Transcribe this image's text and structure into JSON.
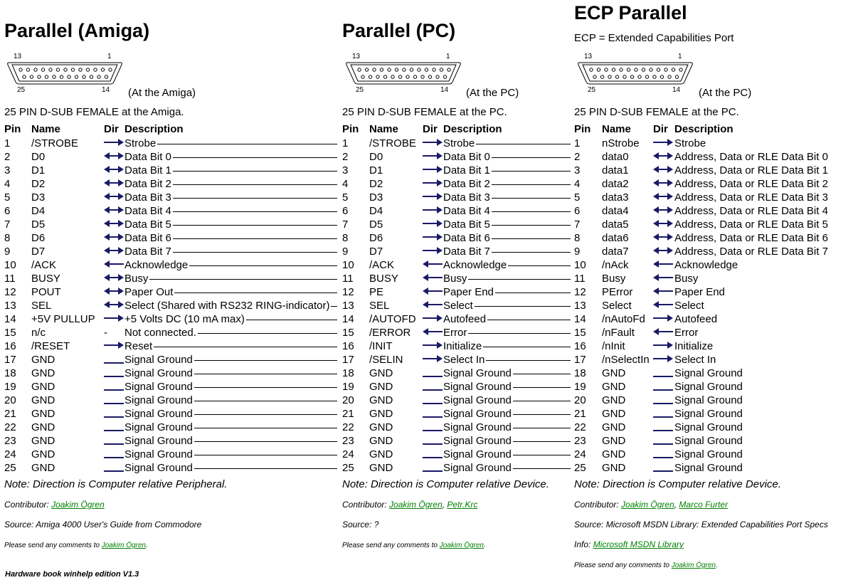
{
  "sections": [
    {
      "title": "Parallel (Amiga)",
      "subtitle": "",
      "connector": {
        "pin_first": "13",
        "pin_last": "1",
        "pin_bottom_left": "25",
        "pin_bottom_right": "14",
        "side_note": "(At the Amiga)"
      },
      "connector_desc": "25 PIN D-SUB FEMALE at the Amiga.",
      "headers": {
        "pin": "Pin",
        "name": "Name",
        "dir": "Dir",
        "desc": "Description"
      },
      "rows": [
        {
          "pin": "1",
          "name": "/STROBE",
          "dir": "out",
          "desc": "Strobe"
        },
        {
          "pin": "2",
          "name": "D0",
          "dir": "bi",
          "desc": "Data Bit 0"
        },
        {
          "pin": "3",
          "name": "D1",
          "dir": "bi",
          "desc": "Data Bit 1"
        },
        {
          "pin": "4",
          "name": "D2",
          "dir": "bi",
          "desc": "Data Bit 2"
        },
        {
          "pin": "5",
          "name": "D3",
          "dir": "bi",
          "desc": "Data Bit 3"
        },
        {
          "pin": "6",
          "name": "D4",
          "dir": "bi",
          "desc": "Data Bit 4"
        },
        {
          "pin": "7",
          "name": "D5",
          "dir": "bi",
          "desc": "Data Bit 5"
        },
        {
          "pin": "8",
          "name": "D6",
          "dir": "bi",
          "desc": "Data Bit 6"
        },
        {
          "pin": "9",
          "name": "D7",
          "dir": "bi",
          "desc": "Data Bit 7"
        },
        {
          "pin": "10",
          "name": "/ACK",
          "dir": "in",
          "desc": "Acknowledge"
        },
        {
          "pin": "11",
          "name": "BUSY",
          "dir": "bi",
          "desc": "Busy"
        },
        {
          "pin": "12",
          "name": "POUT",
          "dir": "bi",
          "desc": "Paper Out"
        },
        {
          "pin": "13",
          "name": "SEL",
          "dir": "bi",
          "desc": "Select (Shared with RS232 RING-indicator)"
        },
        {
          "pin": "14",
          "name": "+5V PULLUP",
          "dir": "out",
          "desc": "+5 Volts DC (10 mA max)"
        },
        {
          "pin": "15",
          "name": "n/c",
          "dir": "-",
          "desc": "Not connected."
        },
        {
          "pin": "16",
          "name": "/RESET",
          "dir": "out",
          "desc": "Reset"
        },
        {
          "pin": "17",
          "name": "GND",
          "dir": "gnd",
          "desc": "Signal Ground"
        },
        {
          "pin": "18",
          "name": "GND",
          "dir": "gnd",
          "desc": "Signal Ground"
        },
        {
          "pin": "19",
          "name": "GND",
          "dir": "gnd",
          "desc": "Signal Ground"
        },
        {
          "pin": "20",
          "name": "GND",
          "dir": "gnd",
          "desc": "Signal Ground"
        },
        {
          "pin": "21",
          "name": "GND",
          "dir": "gnd",
          "desc": "Signal Ground"
        },
        {
          "pin": "22",
          "name": "GND",
          "dir": "gnd",
          "desc": "Signal Ground"
        },
        {
          "pin": "23",
          "name": "GND",
          "dir": "gnd",
          "desc": "Signal Ground"
        },
        {
          "pin": "24",
          "name": "GND",
          "dir": "gnd",
          "desc": "Signal Ground"
        },
        {
          "pin": "25",
          "name": "GND",
          "dir": "gnd",
          "desc": "Signal Ground"
        }
      ],
      "note": "Note: Direction is Computer relative Peripheral.",
      "contributor_label": "Contributor:",
      "contributors": [
        "Joakim Ögren"
      ],
      "source": "Source: Amiga 4000 User's Guide from Commodore",
      "info_label": "",
      "info_link": "",
      "comments_text": "Please send any comments to",
      "comments_link": "Joakim Ögren"
    },
    {
      "title": "Parallel (PC)",
      "subtitle": "",
      "connector": {
        "pin_first": "13",
        "pin_last": "1",
        "pin_bottom_left": "25",
        "pin_bottom_right": "14",
        "side_note": "(At the PC)"
      },
      "connector_desc": "25 PIN D-SUB FEMALE at the PC.",
      "headers": {
        "pin": "Pin",
        "name": "Name",
        "dir": "Dir",
        "desc": "Description"
      },
      "rows": [
        {
          "pin": "1",
          "name": "/STROBE",
          "dir": "out",
          "desc": "Strobe"
        },
        {
          "pin": "2",
          "name": "D0",
          "dir": "out",
          "desc": "Data Bit 0"
        },
        {
          "pin": "3",
          "name": "D1",
          "dir": "out",
          "desc": "Data Bit 1"
        },
        {
          "pin": "4",
          "name": "D2",
          "dir": "out",
          "desc": "Data Bit 2"
        },
        {
          "pin": "5",
          "name": "D3",
          "dir": "out",
          "desc": "Data Bit 3"
        },
        {
          "pin": "6",
          "name": "D4",
          "dir": "out",
          "desc": "Data Bit 4"
        },
        {
          "pin": "7",
          "name": "D5",
          "dir": "out",
          "desc": "Data Bit 5"
        },
        {
          "pin": "8",
          "name": "D6",
          "dir": "out",
          "desc": "Data Bit 6"
        },
        {
          "pin": "9",
          "name": "D7",
          "dir": "out",
          "desc": "Data Bit 7"
        },
        {
          "pin": "10",
          "name": "/ACK",
          "dir": "in",
          "desc": "Acknowledge"
        },
        {
          "pin": "11",
          "name": "BUSY",
          "dir": "in",
          "desc": "Busy"
        },
        {
          "pin": "12",
          "name": "PE",
          "dir": "in",
          "desc": "Paper End"
        },
        {
          "pin": "13",
          "name": "SEL",
          "dir": "in",
          "desc": "Select"
        },
        {
          "pin": "14",
          "name": "/AUTOFD",
          "dir": "out",
          "desc": "Autofeed"
        },
        {
          "pin": "15",
          "name": "/ERROR",
          "dir": "in",
          "desc": "Error"
        },
        {
          "pin": "16",
          "name": "/INIT",
          "dir": "out",
          "desc": "Initialize"
        },
        {
          "pin": "17",
          "name": "/SELIN",
          "dir": "out",
          "desc": "Select In"
        },
        {
          "pin": "18",
          "name": "GND",
          "dir": "gnd",
          "desc": "Signal Ground"
        },
        {
          "pin": "19",
          "name": "GND",
          "dir": "gnd",
          "desc": "Signal Ground"
        },
        {
          "pin": "20",
          "name": "GND",
          "dir": "gnd",
          "desc": "Signal Ground"
        },
        {
          "pin": "21",
          "name": "GND",
          "dir": "gnd",
          "desc": "Signal Ground"
        },
        {
          "pin": "22",
          "name": "GND",
          "dir": "gnd",
          "desc": "Signal Ground"
        },
        {
          "pin": "23",
          "name": "GND",
          "dir": "gnd",
          "desc": "Signal Ground"
        },
        {
          "pin": "24",
          "name": "GND",
          "dir": "gnd",
          "desc": "Signal Ground"
        },
        {
          "pin": "25",
          "name": "GND",
          "dir": "gnd",
          "desc": "Signal Ground"
        }
      ],
      "note": "Note: Direction is Computer relative Device.",
      "contributor_label": "Contributor:",
      "contributors": [
        "Joakim Ögren",
        "Petr.Krc"
      ],
      "source": "Source: ?",
      "info_label": "",
      "info_link": "",
      "comments_text": "Please send any comments to",
      "comments_link": "Joakim Ögren"
    },
    {
      "title": "ECP Parallel",
      "subtitle": "ECP = Extended Capabilities Port",
      "connector": {
        "pin_first": "13",
        "pin_last": "1",
        "pin_bottom_left": "25",
        "pin_bottom_right": "14",
        "side_note": "(At the PC)"
      },
      "connector_desc": "25 PIN D-SUB FEMALE at the PC.",
      "headers": {
        "pin": "Pin",
        "name": "Name",
        "dir": "Dir",
        "desc": "Description"
      },
      "rows": [
        {
          "pin": "1",
          "name": "nStrobe",
          "dir": "out",
          "desc": "Strobe"
        },
        {
          "pin": "2",
          "name": "data0",
          "dir": "bi",
          "desc": "Address, Data or RLE Data Bit 0"
        },
        {
          "pin": "3",
          "name": "data1",
          "dir": "bi",
          "desc": "Address, Data or RLE Data Bit 1"
        },
        {
          "pin": "4",
          "name": "data2",
          "dir": "bi",
          "desc": "Address, Data or RLE Data Bit 2"
        },
        {
          "pin": "5",
          "name": "data3",
          "dir": "bi",
          "desc": "Address, Data or RLE Data Bit 3"
        },
        {
          "pin": "6",
          "name": "data4",
          "dir": "bi",
          "desc": "Address, Data or RLE Data Bit 4"
        },
        {
          "pin": "7",
          "name": "data5",
          "dir": "bi",
          "desc": "Address, Data or RLE Data Bit 5"
        },
        {
          "pin": "8",
          "name": "data6",
          "dir": "bi",
          "desc": "Address, Data or RLE Data Bit 6"
        },
        {
          "pin": "9",
          "name": "data7",
          "dir": "bi",
          "desc": "Address, Data or RLE Data Bit 7"
        },
        {
          "pin": "10",
          "name": "/nAck",
          "dir": "in",
          "desc": "Acknowledge"
        },
        {
          "pin": "11",
          "name": "Busy",
          "dir": "in",
          "desc": "Busy"
        },
        {
          "pin": "12",
          "name": "PError",
          "dir": "in",
          "desc": "Paper End"
        },
        {
          "pin": "13",
          "name": "Select",
          "dir": "in",
          "desc": "Select"
        },
        {
          "pin": "14",
          "name": "/nAutoFd",
          "dir": "out",
          "desc": "Autofeed"
        },
        {
          "pin": "15",
          "name": "/nFault",
          "dir": "in",
          "desc": "Error"
        },
        {
          "pin": "16",
          "name": "/nInit",
          "dir": "out",
          "desc": "Initialize"
        },
        {
          "pin": "17",
          "name": "/nSelectIn",
          "dir": "out",
          "desc": "Select In"
        },
        {
          "pin": "18",
          "name": "GND",
          "dir": "gnd",
          "desc": "Signal Ground"
        },
        {
          "pin": "19",
          "name": "GND",
          "dir": "gnd",
          "desc": "Signal Ground"
        },
        {
          "pin": "20",
          "name": "GND",
          "dir": "gnd",
          "desc": "Signal Ground"
        },
        {
          "pin": "21",
          "name": "GND",
          "dir": "gnd",
          "desc": "Signal Ground"
        },
        {
          "pin": "22",
          "name": "GND",
          "dir": "gnd",
          "desc": "Signal Ground"
        },
        {
          "pin": "23",
          "name": "GND",
          "dir": "gnd",
          "desc": "Signal Ground"
        },
        {
          "pin": "24",
          "name": "GND",
          "dir": "gnd",
          "desc": "Signal Ground"
        },
        {
          "pin": "25",
          "name": "GND",
          "dir": "gnd",
          "desc": "Signal Ground"
        }
      ],
      "note": "Note: Direction is Computer relative Device.",
      "contributor_label": "Contributor:",
      "contributors": [
        "Joakim Ögren",
        "Marco Furter"
      ],
      "source": "Source: Microsoft MSDN Library: Extended Capabilities Port Specs",
      "info_label": "Info:",
      "info_link": "Microsoft MSDN Library",
      "comments_text": "Please send any comments to",
      "comments_link": "Joakim Ögren"
    }
  ],
  "footer": "Hardware book winhelp edition V1.3",
  "colors": {
    "arrow": "#1a1a66",
    "link": "#008000",
    "text": "#000000"
  }
}
